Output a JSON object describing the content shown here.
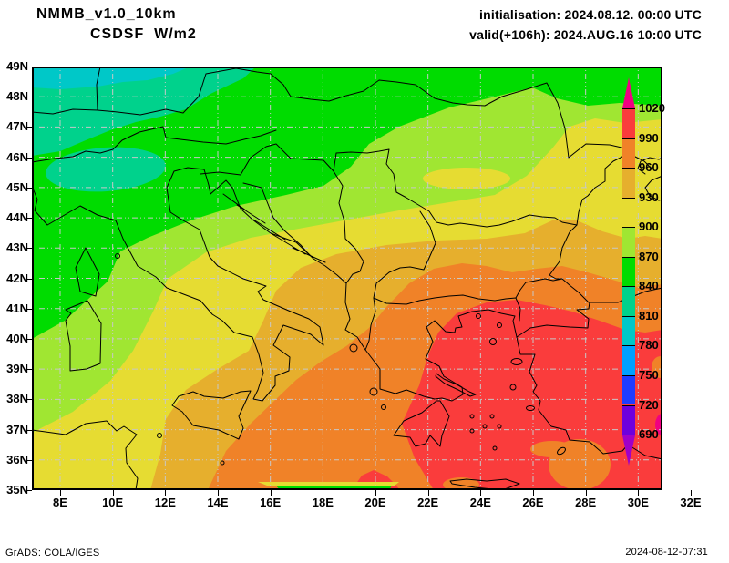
{
  "header": {
    "model": "NMMB_v1.0_10km",
    "variable_line": "CSDSF  W/m2",
    "init_line": "initialisation: 2024.08.12. 00:00 UTC",
    "valid_line": "valid(+106h): 2024.AUG.16 10:00 UTC"
  },
  "footer": {
    "credit": "GrADS: COLA/IGES",
    "generated": "2024-08-12-07:31"
  },
  "axes": {
    "lat_labels": [
      "49N",
      "48N",
      "47N",
      "46N",
      "45N",
      "44N",
      "43N",
      "42N",
      "41N",
      "40N",
      "39N",
      "38N",
      "37N",
      "36N",
      "35N"
    ],
    "lon_labels": [
      "8E",
      "10E",
      "12E",
      "14E",
      "16E",
      "18E",
      "20E",
      "22E",
      "24E",
      "26E",
      "28E",
      "30E",
      "32E"
    ]
  },
  "colorbar": {
    "levels": [
      "1020",
      "990",
      "960",
      "930",
      "900",
      "870",
      "840",
      "810",
      "780",
      "750",
      "720",
      "690"
    ],
    "order": [
      "magenta",
      "red",
      "orange",
      "dyellow",
      "yellow",
      "ygreen",
      "green",
      "teal",
      "cyan",
      "ltblue",
      "blue",
      "violet",
      "purple"
    ],
    "palette": {
      "magenta": "#f00082",
      "red": "#fa3c3c",
      "orange": "#f08228",
      "dyellow": "#e6af2d",
      "yellow": "#e6dc32",
      "ygreen": "#a0e632",
      "green": "#00dc00",
      "teal": "#00d28c",
      "cyan": "#00c8c8",
      "ltblue": "#00a0ff",
      "blue": "#1e3cff",
      "violet": "#6e00dc",
      "purple": "#a000c8"
    },
    "grid_color": "#c8c8c8"
  }
}
